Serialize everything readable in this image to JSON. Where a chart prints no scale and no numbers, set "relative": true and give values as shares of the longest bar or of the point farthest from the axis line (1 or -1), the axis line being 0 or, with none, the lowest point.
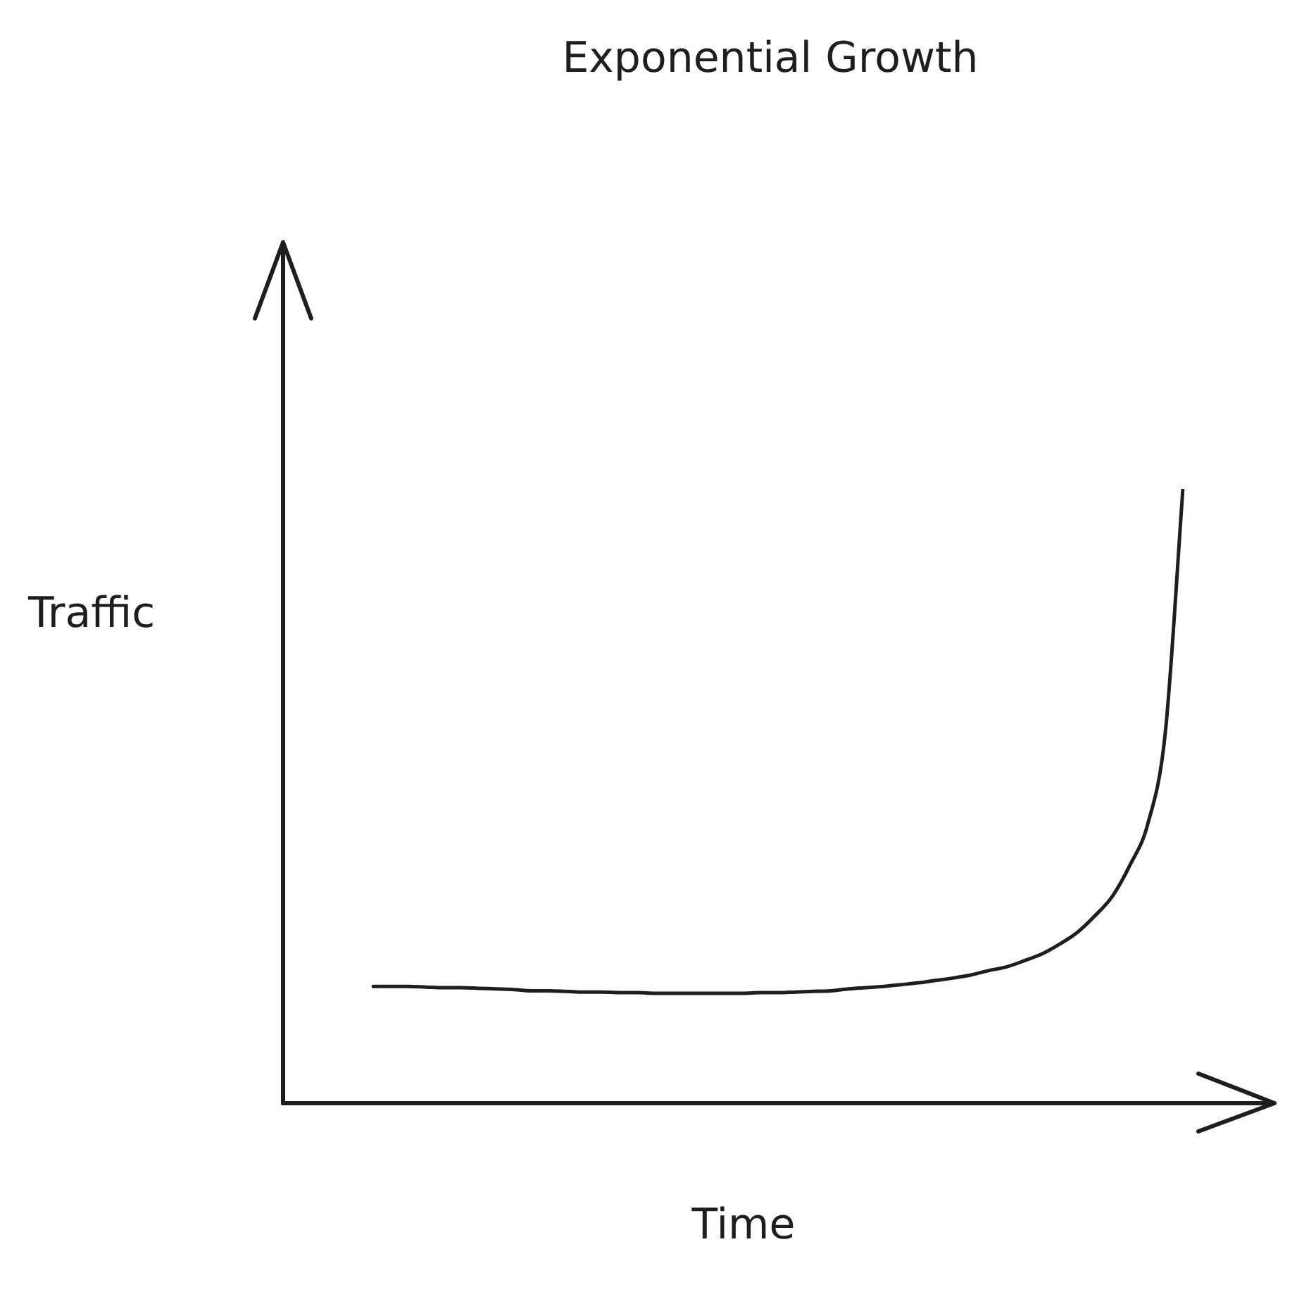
{
  "chart_data": {
    "type": "line",
    "title": "Exponential Growth",
    "xlabel": "Time",
    "ylabel": "Traffic",
    "relative": true,
    "legend": false,
    "marker": "none",
    "line_style": "solid",
    "categories": [
      null,
      null,
      null,
      null,
      null,
      null,
      null,
      null,
      null,
      null,
      null,
      null,
      null,
      null,
      null,
      null,
      null,
      null,
      null,
      null,
      null,
      null,
      null,
      null,
      null,
      null,
      null,
      null,
      null,
      null,
      null,
      null,
      null,
      null,
      null,
      null,
      null,
      null,
      null,
      null,
      null,
      null,
      null,
      null,
      null,
      null,
      null
    ],
    "series": [
      {
        "color": "#1e1e1e",
        "values": [
          0.19,
          0.19,
          0.19,
          0.189,
          0.188,
          0.188,
          0.187,
          0.186,
          0.185,
          0.183,
          0.183,
          0.182,
          0.181,
          0.181,
          0.18,
          0.18,
          0.179,
          0.179,
          0.179,
          0.179,
          0.179,
          0.179,
          0.18,
          0.18,
          0.181,
          0.182,
          0.183,
          0.186,
          0.188,
          0.19,
          0.193,
          0.196,
          0.2,
          0.204,
          0.209,
          0.216,
          0.222,
          0.232,
          0.243,
          0.259,
          0.278,
          0.305,
          0.337,
          0.388,
          0.454,
          0.603,
          1
        ]
      }
    ]
  }
}
